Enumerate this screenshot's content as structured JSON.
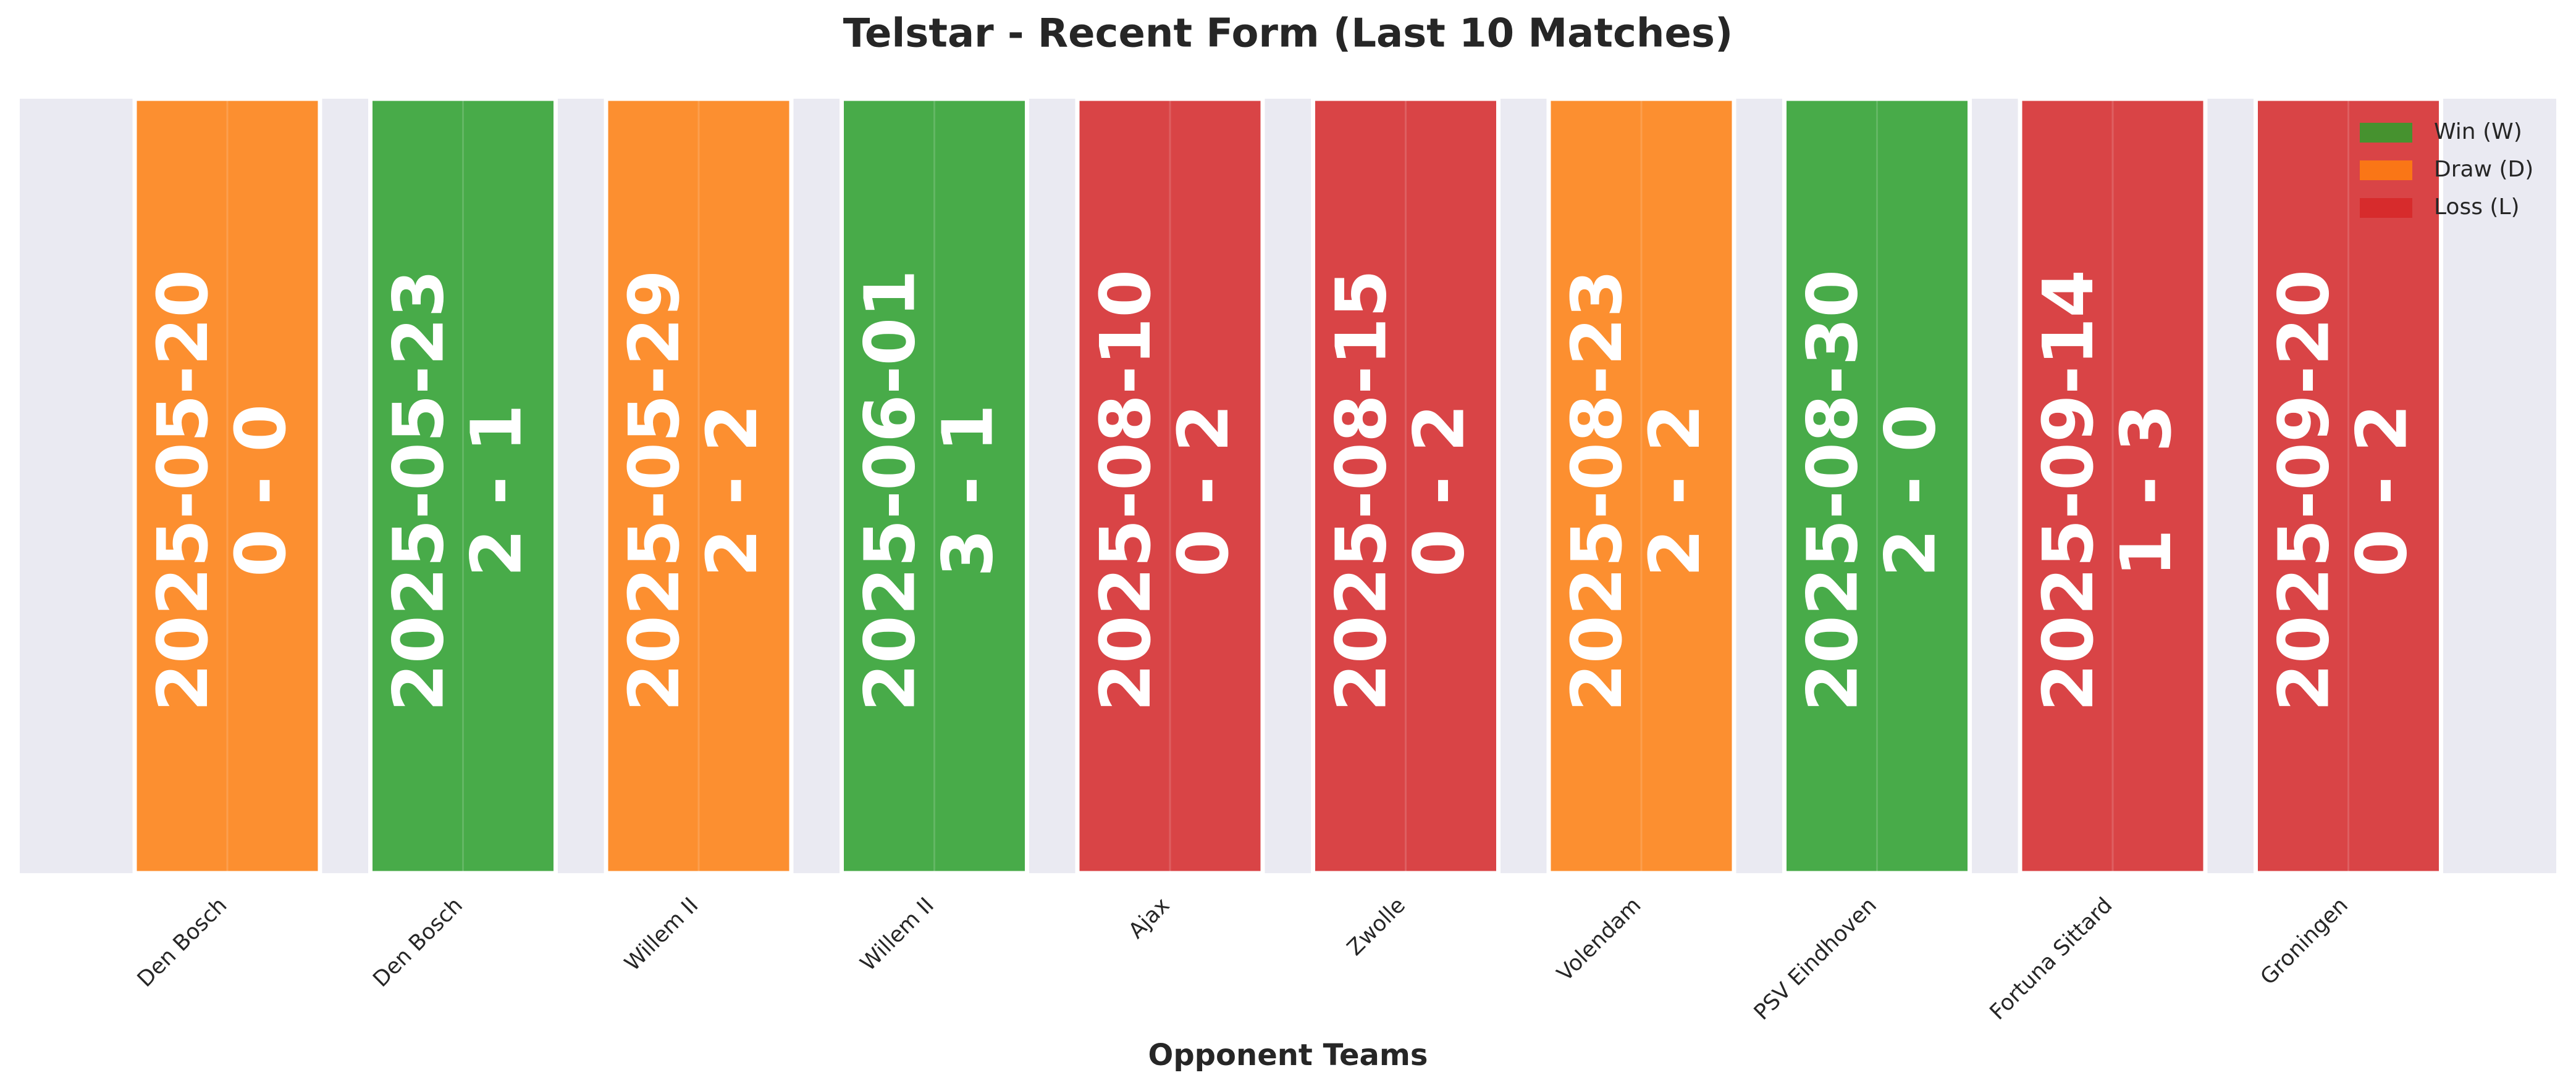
{
  "chart_data": {
    "type": "bar",
    "title": "Telstar - Recent Form (Last 10 Matches)",
    "x_label": "Opponent Teams",
    "categories": [
      "Den Bosch",
      "Den Bosch",
      "Willem II",
      "Willem II",
      "Ajax",
      "Zwolle",
      "Volendam",
      "PSV Eindhoven",
      "Fortuna Sittard",
      "Groningen"
    ],
    "dates": [
      "2025-05-20",
      "2025-05-23",
      "2025-05-29",
      "2025-06-01",
      "2025-08-10",
      "2025-08-15",
      "2025-08-23",
      "2025-08-30",
      "2025-09-14",
      "2025-09-20"
    ],
    "scores": [
      "0 - 0",
      "2 - 1",
      "2 - 2",
      "3 - 1",
      "0 - 2",
      "0 - 2",
      "2 - 2",
      "2 - 0",
      "1 - 3",
      "0 - 2"
    ],
    "bar_colors": [
      "#ff7f0e",
      "#2ca02c",
      "#ff7f0e",
      "#2ca02c",
      "#d62728",
      "#d62728",
      "#ff7f0e",
      "#2ca02c",
      "#d62728",
      "#d62728"
    ],
    "legend": [
      {
        "name": "Win (W)",
        "color": "#2ca02c"
      },
      {
        "name": "Draw (D)",
        "color": "#ff7f0e"
      },
      {
        "name": "Loss (L)",
        "color": "#d62728"
      }
    ],
    "legend_position": "upper right"
  }
}
